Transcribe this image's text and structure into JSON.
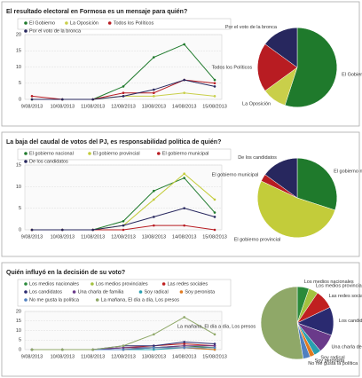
{
  "chart_data": [
    {
      "type": "line",
      "title": "El resultado electoral en Formosa es un mensaje para quién?",
      "categories": [
        "9/08/2013",
        "10/08/2013",
        "11/08/2013",
        "12/08/2013",
        "13/08/2013",
        "14/08/2013",
        "15/08/2013"
      ],
      "series": [
        {
          "name": "El Gobierno",
          "color": "#1f7a2c",
          "values": [
            0,
            0,
            0,
            4,
            13,
            17,
            6
          ]
        },
        {
          "name": "La Oposición",
          "color": "#c9cf4a",
          "values": [
            0,
            0,
            0,
            1,
            1,
            2,
            1
          ]
        },
        {
          "name": "Todos los Políticos",
          "color": "#b81c22",
          "values": [
            1,
            0,
            0,
            2,
            2,
            6,
            5
          ]
        },
        {
          "name": "Por el voto de la bronca",
          "color": "#27275e",
          "values": [
            0,
            0,
            0,
            1,
            3,
            6,
            4
          ]
        }
      ],
      "ylim": [
        0,
        20
      ],
      "yticks": [
        0,
        5,
        10,
        15,
        20
      ],
      "grid": true
    },
    {
      "type": "pie",
      "categories": [
        "El Gobierno",
        "La Oposición",
        "Todos los Políticos",
        "Por el voto de la bronca"
      ],
      "values": [
        55,
        10,
        20,
        15
      ],
      "colors": [
        "#1f7a2c",
        "#c9cf4a",
        "#b81c22",
        "#27275e"
      ]
    },
    {
      "type": "line",
      "title": "La baja del caudal de votos del PJ, es responsabilidad política de quién?",
      "categories": [
        "9/08/2013",
        "10/08/2013",
        "11/08/2013",
        "12/08/2013",
        "13/08/2013",
        "14/08/2013",
        "15/08/2013"
      ],
      "series": [
        {
          "name": "El gobierno nacional",
          "color": "#1f7a2c",
          "values": [
            0,
            0,
            0,
            2,
            9,
            12,
            4
          ]
        },
        {
          "name": "El gobierno provincial",
          "color": "#c3cc3a",
          "values": [
            0,
            0,
            0,
            1,
            7,
            13,
            7
          ]
        },
        {
          "name": "El gobierno municipal",
          "color": "#b81c22",
          "values": [
            0,
            0,
            0,
            0,
            1,
            1,
            0
          ]
        },
        {
          "name": "De los candidatos",
          "color": "#27275e",
          "values": [
            0,
            0,
            0,
            1,
            3,
            5,
            3
          ]
        }
      ],
      "ylim": [
        0,
        15
      ],
      "yticks": [
        0,
        5,
        10,
        15
      ],
      "grid": true
    },
    {
      "type": "pie",
      "categories": [
        "El gobierno nacional",
        "El gobierno provincial",
        "El gobierno municipal",
        "De los candidatos"
      ],
      "values": [
        30,
        52,
        3,
        15
      ],
      "colors": [
        "#1f7a2c",
        "#c3cc3a",
        "#b81c22",
        "#27275e"
      ]
    },
    {
      "type": "line",
      "title": "Quién influyó en la decisión de su voto?",
      "categories": [
        "9/08/2013",
        "10/08/2013",
        "11/08/2013",
        "12/08/2013",
        "13/08/2013",
        "14/08/2013",
        "15/08/2013"
      ],
      "series": [
        {
          "name": "Los medios nacionales",
          "color": "#2a8a3a",
          "values": [
            0,
            0,
            0,
            1,
            1,
            2,
            1
          ]
        },
        {
          "name": "Los medios provinciales",
          "color": "#a3c13f",
          "values": [
            0,
            0,
            0,
            0,
            1,
            1,
            1
          ]
        },
        {
          "name": "Las redes sociales",
          "color": "#c02020",
          "values": [
            0,
            0,
            0,
            1,
            2,
            3,
            2
          ]
        },
        {
          "name": "Los candidatos",
          "color": "#2a2a70",
          "values": [
            0,
            0,
            0,
            2,
            2,
            4,
            3
          ]
        },
        {
          "name": "Una charla de familia",
          "color": "#6a3a8a",
          "values": [
            0,
            0,
            0,
            1,
            1,
            2,
            2
          ]
        },
        {
          "name": "Soy radical",
          "color": "#2aa0b0",
          "values": [
            0,
            0,
            0,
            0,
            0,
            1,
            0
          ]
        },
        {
          "name": "Soy peronista",
          "color": "#e07a20",
          "values": [
            0,
            0,
            0,
            0,
            1,
            1,
            0
          ]
        },
        {
          "name": "No me gusta la política",
          "color": "#5080c0",
          "values": [
            0,
            0,
            0,
            0,
            1,
            1,
            1
          ]
        },
        {
          "name": "La mañana, El día a día, Los presos",
          "color": "#8fa868",
          "values": [
            0,
            0,
            0,
            2,
            8,
            17,
            8
          ]
        }
      ],
      "ylim": [
        0,
        20
      ],
      "yticks": [
        0,
        5,
        10,
        15,
        20
      ],
      "grid": true
    },
    {
      "type": "pie",
      "categories": [
        "Los medios nacionales",
        "Los medios provinciales",
        "Las redes sociales",
        "Los candidatos",
        "Una charla de familia",
        "Soy radical",
        "Soy peronista",
        "No me gusta la política",
        "La mañana, El día a día, Los presos"
      ],
      "values": [
        5,
        4,
        8,
        12,
        8,
        3,
        2,
        3,
        50
      ],
      "colors": [
        "#2a8a3a",
        "#a3c13f",
        "#c02020",
        "#2a2a70",
        "#6a3a8a",
        "#2aa0b0",
        "#e07a20",
        "#5080c0",
        "#8fa868"
      ]
    }
  ]
}
